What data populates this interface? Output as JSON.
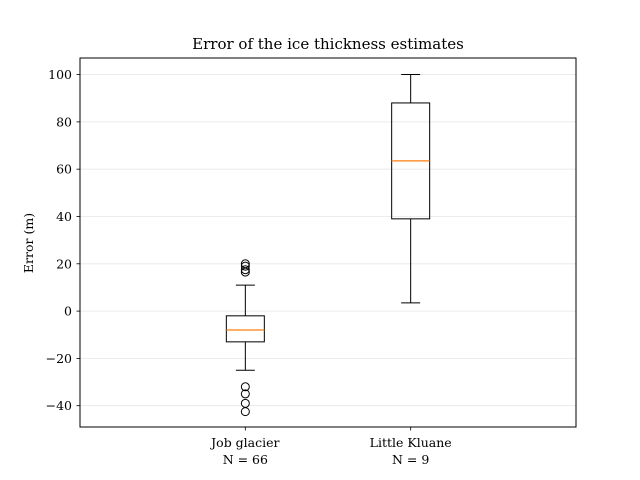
{
  "chart_data": {
    "type": "box",
    "title": "Error of the ice thickness estimates",
    "xlabel": "",
    "ylabel": "Error (m)",
    "ylim": [
      -49,
      107
    ],
    "yticks": [
      -40,
      -20,
      0,
      20,
      40,
      60,
      80,
      100
    ],
    "grid": "horizontal",
    "categories": [
      {
        "name": "Job glacier",
        "sublabel": "N = 66",
        "whisker_low": -25,
        "q1": -13,
        "median": -8,
        "q3": -2,
        "whisker_high": 11,
        "outliers": [
          16.5,
          17.5,
          19,
          20,
          -32,
          -35,
          -39,
          -42.5
        ]
      },
      {
        "name": "Little Kluane",
        "sublabel": "N = 9",
        "whisker_low": 3.5,
        "q1": 39,
        "median": 63.5,
        "q3": 88,
        "whisker_high": 100,
        "outliers": []
      }
    ],
    "colors": {
      "box": "#000000",
      "median": "#ff7f0e",
      "grid": "#e6e6e6"
    }
  }
}
